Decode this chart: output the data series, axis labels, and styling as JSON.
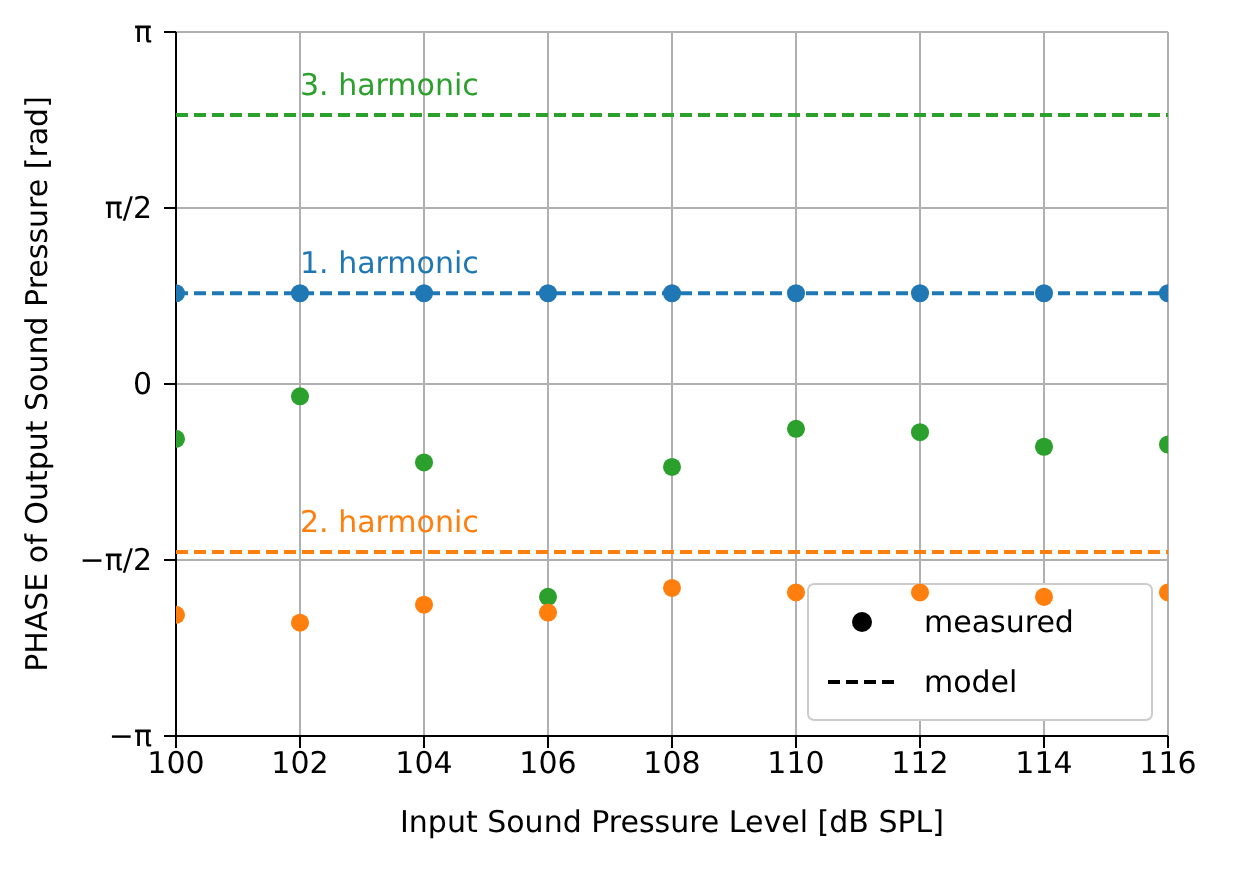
{
  "chart_data": {
    "type": "scatter",
    "xlabel": "Input Sound Pressure Level [dB SPL]",
    "ylabel": "PHASE of Output Sound Pressure [rad]",
    "xlim": [
      100,
      116
    ],
    "xticks": [
      100,
      102,
      104,
      106,
      108,
      110,
      112,
      114,
      116
    ],
    "ylim": [
      -3.1416,
      3.1416
    ],
    "yticks": [
      {
        "value": -3.1416,
        "label": "−π"
      },
      {
        "value": -1.5708,
        "label": "−π/2"
      },
      {
        "value": 0,
        "label": "0"
      },
      {
        "value": 1.5708,
        "label": "π/2"
      },
      {
        "value": 3.1416,
        "label": "π"
      }
    ],
    "grid": true,
    "marker": "circle",
    "x": [
      100,
      102,
      104,
      106,
      108,
      110,
      112,
      114,
      116
    ],
    "series": [
      {
        "color": "#1f77b4",
        "values": [
          0.81,
          0.81,
          0.81,
          0.81,
          0.81,
          0.81,
          0.81,
          0.81,
          0.81
        ]
      },
      {
        "color": "#2ca02c",
        "values": [
          -0.49,
          -0.11,
          -0.7,
          -1.9,
          -0.74,
          -0.4,
          -0.43,
          -0.56,
          -0.54
        ]
      },
      {
        "color": "#ff7f0e",
        "values": [
          -2.06,
          -2.13,
          -1.97,
          -2.04,
          -1.82,
          -1.86,
          -1.86,
          -1.9,
          -1.86
        ]
      },
      {
        "type": "line",
        "color": "#1f77b4",
        "line_style": "dashed",
        "marker": "none",
        "values": [
          0.81,
          0.81,
          0.81,
          0.81,
          0.81,
          0.81,
          0.81,
          0.81,
          0.81
        ]
      },
      {
        "type": "line",
        "color": "#ff7f0e",
        "line_style": "dashed",
        "marker": "none",
        "values": [
          -1.5,
          -1.5,
          -1.5,
          -1.5,
          -1.5,
          -1.5,
          -1.5,
          -1.5,
          -1.5
        ]
      },
      {
        "type": "line",
        "color": "#2ca02c",
        "line_style": "dashed",
        "marker": "none",
        "values": [
          2.4,
          2.4,
          2.4,
          2.4,
          2.4,
          2.4,
          2.4,
          2.4,
          2.4
        ]
      }
    ],
    "annotations": [
      "measured",
      "model",
      {
        "text": "1. harmonic",
        "y": 0.81
      },
      {
        "text": "2. harmonic",
        "y": -1.5
      },
      {
        "text": "3. harmonic",
        "y": 2.4
      }
    ]
  }
}
